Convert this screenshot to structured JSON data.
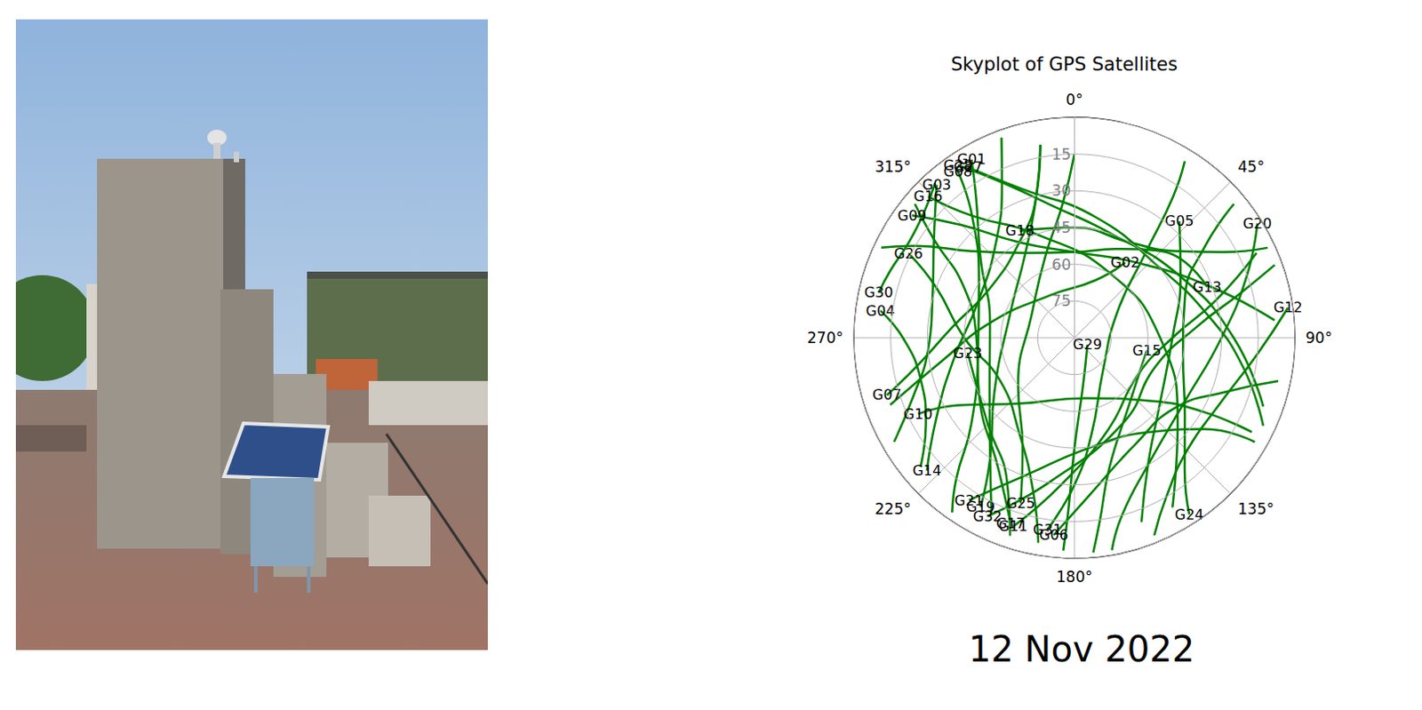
{
  "chart_data": {
    "type": "polar_line",
    "title": "Skyplot of GPS Satellites",
    "annotations": [
      "12 Nov 2022"
    ],
    "color": "#008000",
    "line_style": "solid",
    "grid": true,
    "xlim": [
      0,
      360
    ],
    "xticks": [
      {
        "value": 0,
        "label": "0°"
      },
      {
        "value": 45,
        "label": "45°"
      },
      {
        "value": 90,
        "label": "90°"
      },
      {
        "value": 135,
        "label": "135°"
      },
      {
        "value": 180,
        "label": "180°"
      },
      {
        "value": 225,
        "label": "225°"
      },
      {
        "value": 270,
        "label": "270°"
      },
      {
        "value": 315,
        "label": "315°"
      }
    ],
    "ylim": [
      0,
      90
    ],
    "yticks": [
      15,
      30,
      45,
      60,
      75
    ],
    "series": [
      {
        "name": "G01",
        "values": [
          [
            330,
            6
          ],
          [
            325,
            20
          ],
          [
            310,
            40
          ],
          [
            280,
            55
          ],
          [
            240,
            50
          ],
          [
            215,
            30
          ],
          [
            205,
            10
          ]
        ]
      },
      {
        "name": "G28",
        "values": [
          [
            326,
            5
          ],
          [
            335,
            20
          ],
          [
            350,
            35
          ],
          [
            20,
            45
          ],
          [
            60,
            40
          ],
          [
            90,
            25
          ],
          [
            110,
            8
          ]
        ]
      },
      {
        "name": "G27",
        "values": [
          [
            328,
            8
          ],
          [
            340,
            25
          ],
          [
            10,
            40
          ],
          [
            50,
            45
          ],
          [
            80,
            35
          ],
          [
            100,
            20
          ],
          [
            115,
            5
          ]
        ]
      },
      {
        "name": "G08",
        "values": [
          [
            325,
            7
          ],
          [
            320,
            25
          ],
          [
            300,
            45
          ],
          [
            260,
            50
          ],
          [
            230,
            35
          ],
          [
            220,
            15
          ],
          [
            215,
            3
          ]
        ]
      },
      {
        "name": "G03",
        "values": [
          [
            318,
            6
          ],
          [
            305,
            20
          ],
          [
            285,
            30
          ],
          [
            265,
            30
          ],
          [
            250,
            20
          ],
          [
            240,
            5
          ]
        ]
      },
      {
        "name": "G16",
        "values": [
          [
            314,
            7
          ],
          [
            320,
            25
          ],
          [
            340,
            45
          ],
          [
            30,
            60
          ],
          [
            90,
            55
          ],
          [
            130,
            35
          ],
          [
            150,
            10
          ]
        ]
      },
      {
        "name": "G09",
        "values": [
          [
            307,
            7
          ],
          [
            315,
            25
          ],
          [
            330,
            45
          ],
          [
            0,
            55
          ],
          [
            40,
            50
          ],
          [
            70,
            30
          ],
          [
            85,
            8
          ]
        ]
      },
      {
        "name": "G26",
        "values": [
          [
            297,
            14
          ],
          [
            290,
            30
          ],
          [
            270,
            45
          ],
          [
            240,
            55
          ],
          [
            210,
            45
          ],
          [
            195,
            25
          ],
          [
            190,
            5
          ]
        ]
      },
      {
        "name": "G30",
        "values": [
          [
            283,
            8
          ],
          [
            290,
            10
          ],
          [
            300,
            12
          ],
          [
            310,
            10
          ],
          [
            318,
            5
          ]
        ]
      },
      {
        "name": "G04",
        "values": [
          [
            278,
            10
          ],
          [
            270,
            20
          ],
          [
            255,
            25
          ],
          [
            240,
            20
          ],
          [
            230,
            8
          ]
        ]
      },
      {
        "name": "G07",
        "values": [
          [
            253,
            10
          ],
          [
            260,
            25
          ],
          [
            275,
            40
          ],
          [
            300,
            50
          ],
          [
            330,
            45
          ],
          [
            345,
            30
          ],
          [
            350,
            10
          ]
        ]
      },
      {
        "name": "G10",
        "values": [
          [
            244,
            19
          ],
          [
            240,
            35
          ],
          [
            220,
            55
          ],
          [
            170,
            65
          ],
          [
            130,
            50
          ],
          [
            120,
            30
          ],
          [
            118,
            8
          ]
        ]
      },
      {
        "name": "G14",
        "values": [
          [
            228,
            9
          ],
          [
            240,
            25
          ],
          [
            260,
            40
          ],
          [
            290,
            48
          ],
          [
            320,
            40
          ],
          [
            335,
            20
          ],
          [
            340,
            3
          ]
        ]
      },
      {
        "name": "G21",
        "values": [
          [
            213,
            11
          ],
          [
            200,
            30
          ],
          [
            170,
            45
          ],
          [
            140,
            40
          ],
          [
            125,
            25
          ],
          [
            120,
            5
          ]
        ]
      },
      {
        "name": "G19",
        "values": [
          [
            209,
            11
          ],
          [
            215,
            30
          ],
          [
            235,
            50
          ],
          [
            290,
            62
          ],
          [
            330,
            50
          ],
          [
            345,
            30
          ],
          [
            350,
            10
          ]
        ]
      },
      {
        "name": "G32",
        "values": [
          [
            206,
            9
          ],
          [
            190,
            30
          ],
          [
            150,
            50
          ],
          [
            110,
            55
          ],
          [
            85,
            40
          ],
          [
            75,
            20
          ],
          [
            70,
            3
          ]
        ]
      },
      {
        "name": "G25",
        "values": [
          [
            198,
            19
          ],
          [
            205,
            40
          ],
          [
            230,
            60
          ],
          [
            300,
            70
          ],
          [
            340,
            55
          ],
          [
            355,
            35
          ],
          [
            0,
            15
          ]
        ]
      },
      {
        "name": "G11",
        "values": [
          [
            198,
            9
          ],
          [
            185,
            30
          ],
          [
            160,
            50
          ],
          [
            120,
            60
          ],
          [
            90,
            50
          ],
          [
            75,
            30
          ],
          [
            65,
            8
          ]
        ]
      },
      {
        "name": "G17",
        "values": [
          [
            199,
            10
          ],
          [
            210,
            28
          ],
          [
            240,
            45
          ],
          [
            270,
            50
          ],
          [
            295,
            40
          ],
          [
            305,
            20
          ],
          [
            310,
            5
          ]
        ]
      },
      {
        "name": "G31",
        "values": [
          [
            188,
            11
          ],
          [
            180,
            30
          ],
          [
            170,
            50
          ],
          [
            140,
            72
          ],
          [
            60,
            70
          ],
          [
            40,
            45
          ],
          [
            35,
            20
          ],
          [
            32,
            5
          ]
        ]
      },
      {
        "name": "G06",
        "values": [
          [
            186,
            9
          ],
          [
            175,
            25
          ],
          [
            150,
            40
          ],
          [
            125,
            40
          ],
          [
            110,
            25
          ],
          [
            102,
            5
          ]
        ]
      },
      {
        "name": "G24",
        "values": [
          [
            147,
            4
          ],
          [
            140,
            20
          ],
          [
            125,
            35
          ],
          [
            100,
            45
          ],
          [
            70,
            42
          ],
          [
            55,
            25
          ],
          [
            50,
            5
          ]
        ]
      },
      {
        "name": "G12",
        "values": [
          [
            82,
            2
          ],
          [
            95,
            15
          ],
          [
            115,
            25
          ],
          [
            135,
            25
          ],
          [
            150,
            15
          ],
          [
            158,
            3
          ]
        ]
      },
      {
        "name": "G20",
        "values": [
          [
            58,
            2
          ],
          [
            70,
            15
          ],
          [
            90,
            30
          ],
          [
            120,
            38
          ],
          [
            150,
            30
          ],
          [
            165,
            15
          ],
          [
            170,
            2
          ]
        ]
      },
      {
        "name": "G13",
        "values": [
          [
            69,
            32
          ],
          [
            45,
            40
          ],
          [
            25,
            50
          ],
          [
            0,
            55
          ],
          [
            330,
            50
          ],
          [
            310,
            35
          ],
          [
            300,
            15
          ],
          [
            295,
            3
          ]
        ]
      },
      {
        "name": "G05",
        "values": [
          [
            42,
            26
          ],
          [
            60,
            40
          ],
          [
            90,
            50
          ],
          [
            130,
            45
          ],
          [
            150,
            30
          ],
          [
            160,
            10
          ]
        ]
      },
      {
        "name": "G18",
        "values": [
          [
            333,
            41
          ],
          [
            0,
            45
          ],
          [
            30,
            45
          ],
          [
            50,
            35
          ],
          [
            60,
            20
          ],
          [
            65,
            3
          ]
        ]
      },
      {
        "name": "G02",
        "values": [
          [
            34,
            53
          ],
          [
            20,
            65
          ],
          [
            330,
            70
          ],
          [
            280,
            55
          ],
          [
            260,
            35
          ],
          [
            250,
            10
          ]
        ]
      },
      {
        "name": "G29",
        "values": [
          [
            118,
            84
          ],
          [
            170,
            70
          ],
          [
            180,
            45
          ],
          [
            182,
            20
          ],
          [
            183,
            3
          ]
        ]
      },
      {
        "name": "G15",
        "values": [
          [
            100,
            60
          ],
          [
            140,
            55
          ],
          [
            165,
            35
          ],
          [
            172,
            15
          ],
          [
            175,
            2
          ]
        ]
      },
      {
        "name": "G23",
        "values": [
          [
            262,
            46
          ],
          [
            225,
            40
          ],
          [
            205,
            25
          ],
          [
            198,
            5
          ]
        ]
      }
    ]
  }
}
